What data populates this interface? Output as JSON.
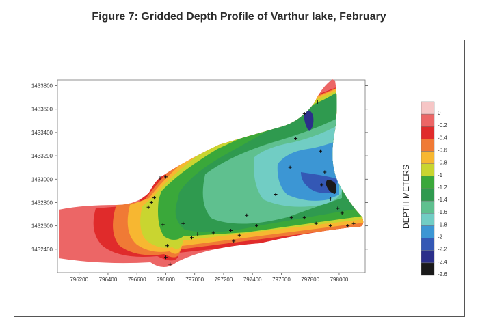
{
  "figure_title": "Figure 7:  Gridded Depth Profile of Varthur lake, February",
  "chart_data": {
    "type": "heatmap",
    "title": "Figure 7:  Gridded Depth Profile of Varthur lake, February",
    "xlabel": "",
    "ylabel": "",
    "xlim": [
      796050,
      798180
    ],
    "ylim": [
      1432200,
      1433850
    ],
    "x_ticks": [
      796200,
      796400,
      796600,
      796800,
      797000,
      797200,
      797400,
      797600,
      797800,
      798000
    ],
    "y_ticks": [
      1432400,
      1432600,
      1432800,
      1433000,
      1433200,
      1433400,
      1433600,
      1433800
    ],
    "x_tick_labels": [
      "796200",
      "796400",
      "796600",
      "796800",
      "797000",
      "797200",
      "797400",
      "797600",
      "797800",
      "798000"
    ],
    "y_tick_labels": [
      "1432400",
      "1432600",
      "1432800",
      "1433000",
      "1433200",
      "1433400",
      "1433600",
      "1433800"
    ],
    "legend_title": "DEPTH METERS",
    "legend": {
      "levels": [
        "0",
        "-0.2",
        "-0.4",
        "-0.6",
        "-0.8",
        "-1",
        "-1.2",
        "-1.4",
        "-1.6",
        "-1.8",
        "-2",
        "-2.2",
        "-2.4",
        "-2.6"
      ],
      "colors": [
        "#f6c6c6",
        "#ec6666",
        "#e02b2b",
        "#f07a35",
        "#f7b731",
        "#c9d530",
        "#3aa83a",
        "#2f9a4f",
        "#5fc08f",
        "#71cdc4",
        "#3c96d4",
        "#3458b5",
        "#2b2f8a",
        "#1a1a1a"
      ]
    },
    "survey_points": [
      [
        796760,
        1433010
      ],
      [
        796800,
        1433020
      ],
      [
        796720,
        1432840
      ],
      [
        796700,
        1432800
      ],
      [
        796680,
        1432760
      ],
      [
        796780,
        1432610
      ],
      [
        796920,
        1432620
      ],
      [
        796810,
        1432430
      ],
      [
        796800,
        1432330
      ],
      [
        796830,
        1432270
      ],
      [
        796980,
        1432500
      ],
      [
        797020,
        1432530
      ],
      [
        797130,
        1432540
      ],
      [
        797250,
        1432560
      ],
      [
        797310,
        1432520
      ],
      [
        797270,
        1432470
      ],
      [
        797430,
        1432600
      ],
      [
        797360,
        1432690
      ],
      [
        797560,
        1432870
      ],
      [
        797660,
        1433100
      ],
      [
        797700,
        1433350
      ],
      [
        797760,
        1433560
      ],
      [
        797850,
        1433660
      ],
      [
        797870,
        1433240
      ],
      [
        797900,
        1433060
      ],
      [
        797880,
        1432950
      ],
      [
        797940,
        1432830
      ],
      [
        797990,
        1432750
      ],
      [
        798020,
        1432710
      ],
      [
        797670,
        1432670
      ],
      [
        797760,
        1432670
      ],
      [
        797840,
        1432620
      ],
      [
        797940,
        1432600
      ],
      [
        798060,
        1432600
      ],
      [
        798100,
        1432620
      ]
    ]
  }
}
